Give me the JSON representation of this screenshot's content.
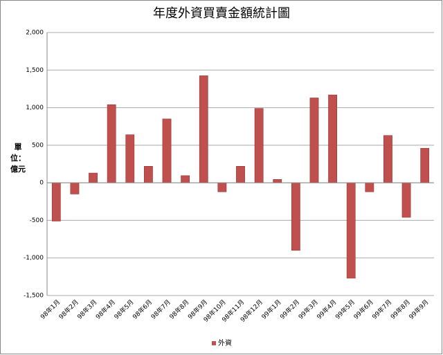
{
  "chart_data": {
    "type": "bar",
    "title": "年度外資買賣金額統計圖",
    "y_label": "單位：億元",
    "categories": [
      "98年1月",
      "98年2月",
      "98年3月",
      "98年4月",
      "98年5月",
      "98年6月",
      "98年7月",
      "98年8月",
      "98年9月",
      "98年10月",
      "98年11月",
      "98年12月",
      "99年1月",
      "99年2月",
      "99年3月",
      "99年4月",
      "99年5月",
      "99年6月",
      "99年7月",
      "99年8月",
      "99年9月"
    ],
    "series": [
      {
        "name": "外資",
        "color": "#c0504d",
        "values": [
          -510,
          -150,
          130,
          1040,
          640,
          220,
          850,
          95,
          1425,
          -120,
          220,
          990,
          45,
          -900,
          1130,
          1170,
          -1270,
          -120,
          630,
          -460,
          460
        ]
      }
    ],
    "ylim": [
      -1500,
      2000
    ],
    "yticks": [
      {
        "value": -1500,
        "label": "-1,500"
      },
      {
        "value": -1000,
        "label": "-1,000"
      },
      -500,
      0,
      500,
      {
        "value": 1000,
        "label": "1,000"
      },
      {
        "value": 1500,
        "label": "1,500"
      },
      {
        "value": 2000,
        "label": "2,000"
      }
    ],
    "grid": true,
    "legend": "bottom"
  }
}
